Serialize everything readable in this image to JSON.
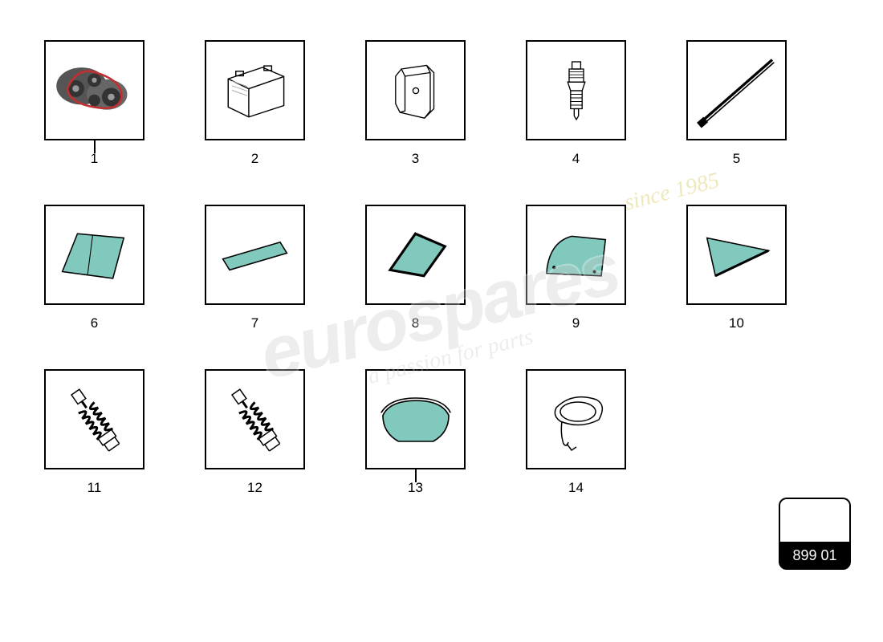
{
  "parts": [
    {
      "num": "1",
      "icon": "engine-belt",
      "pointer": true
    },
    {
      "num": "2",
      "icon": "battery"
    },
    {
      "num": "3",
      "icon": "brake-pad"
    },
    {
      "num": "4",
      "icon": "spark-plug"
    },
    {
      "num": "5",
      "icon": "wiper-blade"
    },
    {
      "num": "6",
      "icon": "windshield"
    },
    {
      "num": "7",
      "icon": "side-window-flat"
    },
    {
      "num": "8",
      "icon": "quarter-window-a"
    },
    {
      "num": "9",
      "icon": "door-window"
    },
    {
      "num": "10",
      "icon": "quarter-window-b"
    },
    {
      "num": "11",
      "icon": "shock-absorber"
    },
    {
      "num": "12",
      "icon": "shock-absorber"
    },
    {
      "num": "13",
      "icon": "rear-window",
      "pointer": true
    },
    {
      "num": "14",
      "icon": "mirror-housing"
    }
  ],
  "code_label": "899 01",
  "watermark": {
    "brand": "eurospares",
    "tagline": "a passion for parts",
    "since": "since 1985"
  },
  "colors": {
    "glass": "#81c9bd",
    "border": "#000000",
    "bg": "#ffffff",
    "wm_gray": "#cccccc",
    "wm_gold": "#d0c040"
  }
}
